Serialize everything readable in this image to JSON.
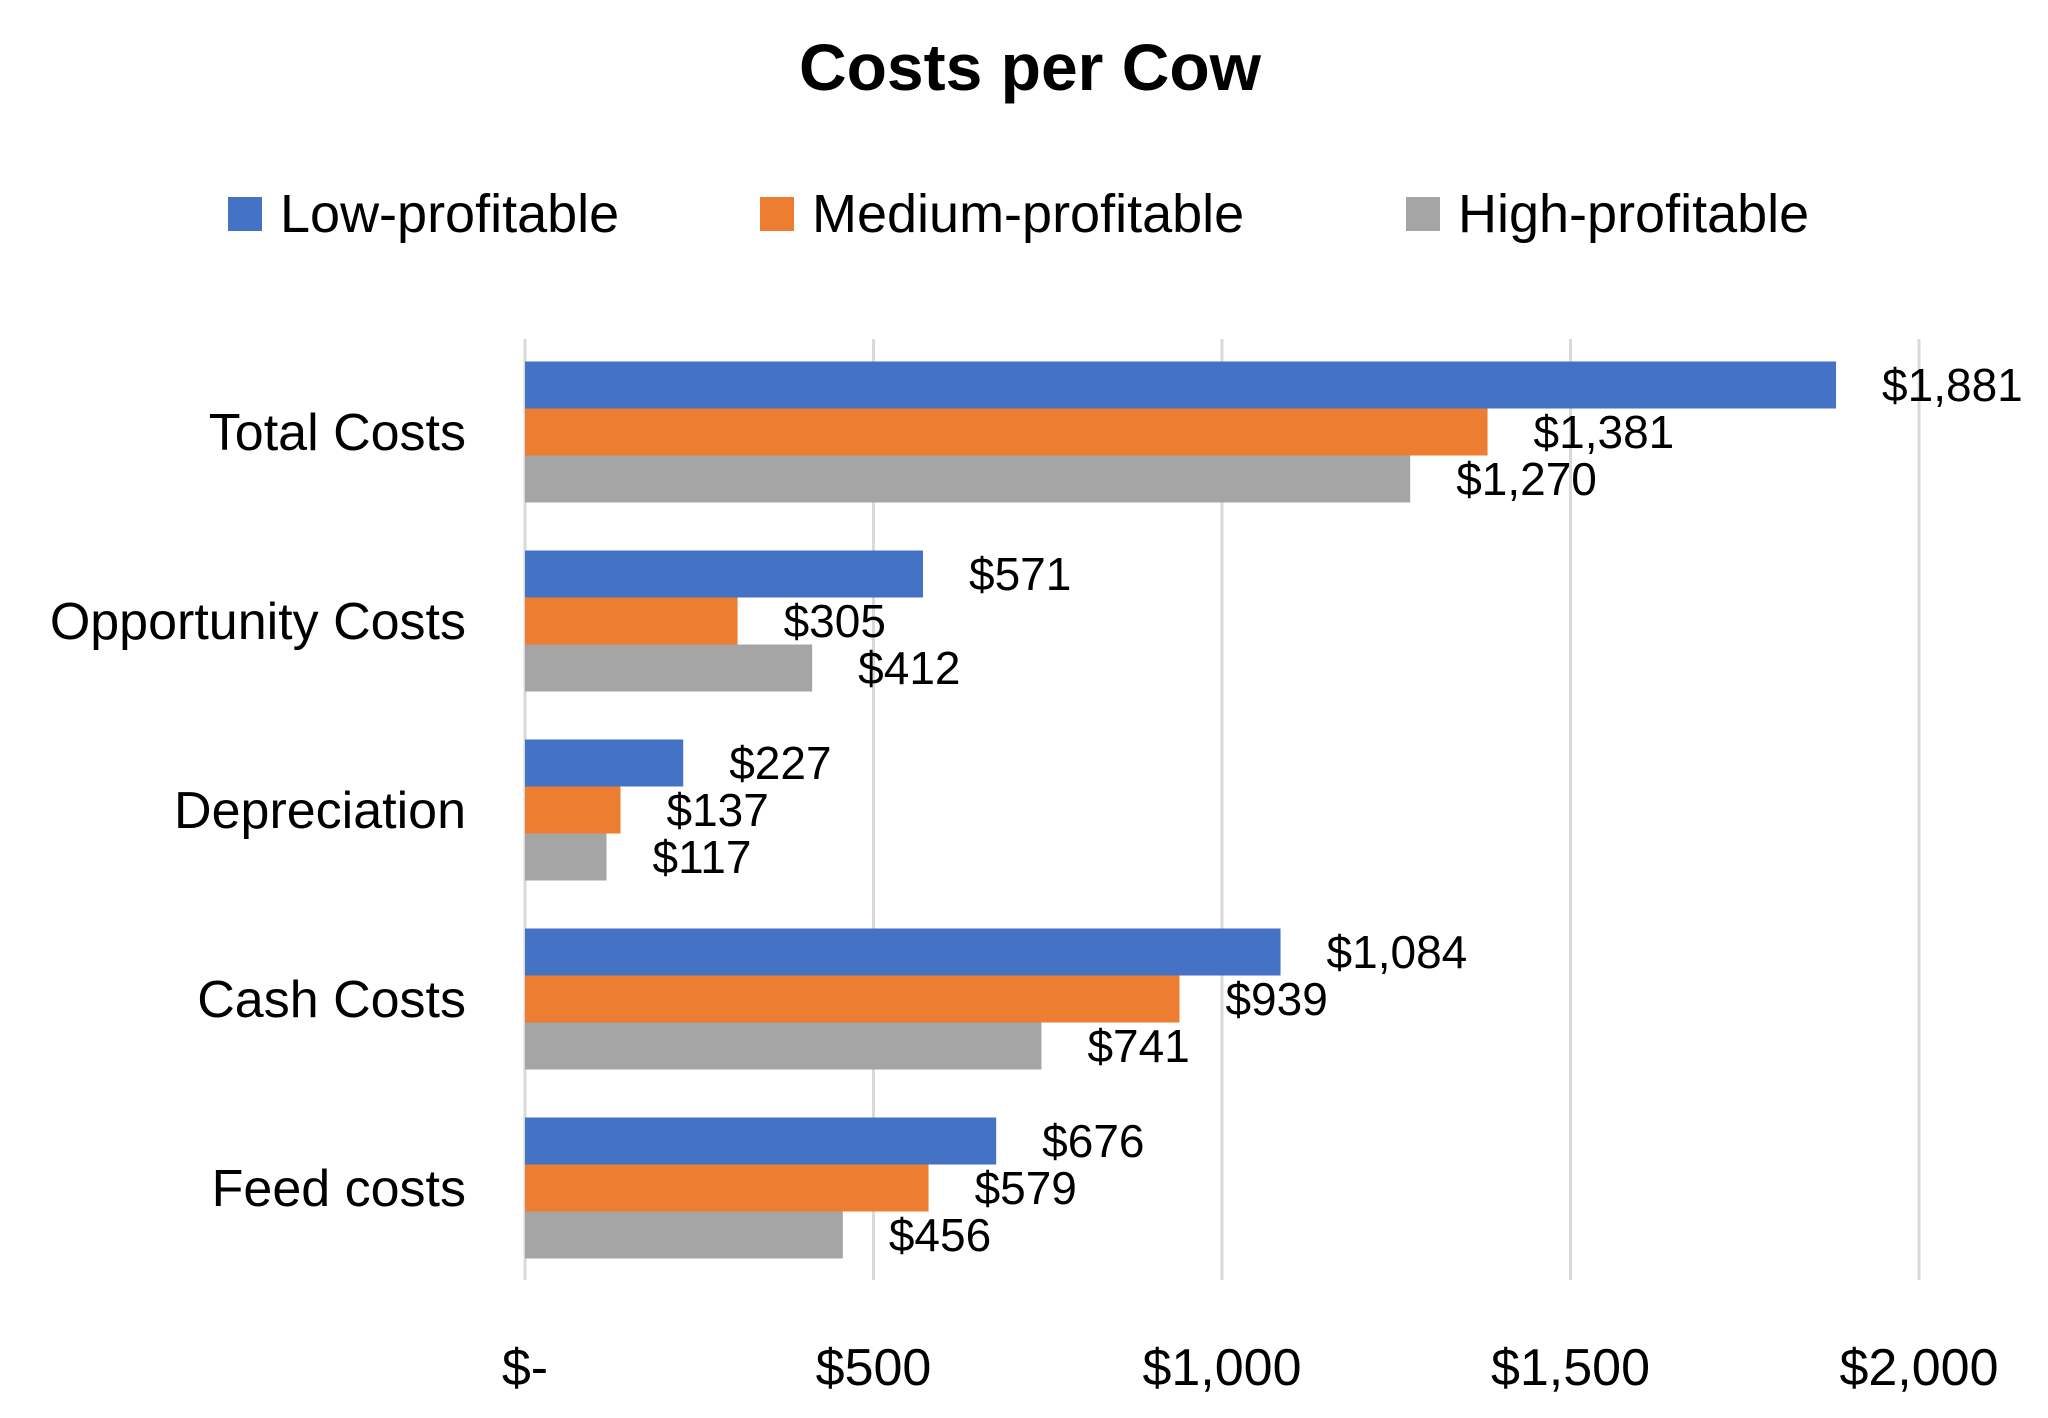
{
  "chart_data": {
    "type": "bar",
    "orientation": "horizontal",
    "title": "Costs per Cow",
    "xlabel": "",
    "ylabel": "",
    "categories": [
      "Total Costs",
      "Opportunity Costs",
      "Depreciation",
      "Cash Costs",
      "Feed costs"
    ],
    "series": [
      {
        "name": "Low-profitable",
        "color": "#4472C4",
        "values": [
          1881,
          571,
          227,
          1084,
          676
        ],
        "labels": [
          "$1,881",
          "$571",
          "$227",
          "$1,084",
          "$676"
        ]
      },
      {
        "name": "Medium-profitable",
        "color": "#ED7D31",
        "values": [
          1381,
          305,
          137,
          939,
          579
        ],
        "labels": [
          "$1,381",
          "$305",
          "$137",
          "$939",
          "$579"
        ]
      },
      {
        "name": "High-profitable",
        "color": "#A5A5A5",
        "values": [
          1270,
          412,
          117,
          741,
          456
        ],
        "labels": [
          "$1,270",
          "$412",
          "$117",
          "$741",
          "$456"
        ]
      }
    ],
    "xlim": [
      0,
      2000
    ],
    "x_ticks": [
      0,
      500,
      1000,
      1500,
      2000
    ],
    "x_tick_labels": [
      "$-",
      "$500",
      "$1,000",
      "$1,500",
      "$2,000"
    ],
    "grid": "vertical",
    "gridline_color": "#D9D9D9",
    "legend_position": "top"
  }
}
